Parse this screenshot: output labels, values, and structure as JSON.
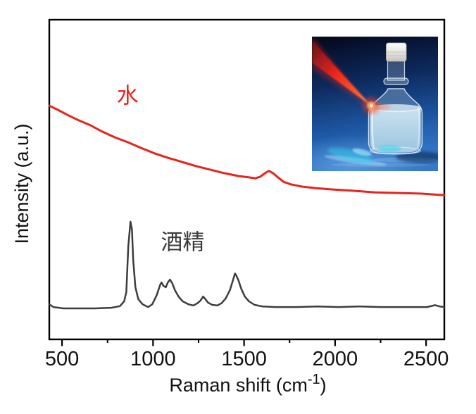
{
  "figure": {
    "frame_color": "#000000",
    "x_axis": {
      "label_pre": "Raman shift (cm",
      "label_sup": "-1",
      "label_post": ")"
    }
  },
  "chart_data": {
    "type": "line",
    "title": "",
    "xlabel": "Raman shift (cm⁻¹)",
    "ylabel": "Intensity (a.u.)",
    "xlim": [
      430,
      2600
    ],
    "ylim": [
      0,
      1
    ],
    "x_major_ticks": [
      500,
      1000,
      1500,
      2000,
      2500
    ],
    "x_minor_ticks": [
      750,
      1250,
      1750,
      2250
    ],
    "y_ticks": [],
    "grid": false,
    "legend_position": "none",
    "annotations": [
      {
        "text": "水",
        "x": 860,
        "y": 0.762,
        "color": "#e8231d"
      },
      {
        "text": "酒精",
        "x": 1163,
        "y": 0.304,
        "color": "#3a3a3a"
      }
    ],
    "series": [
      {
        "name": "水",
        "color": "#e8231d",
        "line_width": 3,
        "points": [
          [
            430,
            0.731
          ],
          [
            477,
            0.718
          ],
          [
            527,
            0.703
          ],
          [
            585,
            0.687
          ],
          [
            655,
            0.67
          ],
          [
            721,
            0.65
          ],
          [
            791,
            0.632
          ],
          [
            860,
            0.617
          ],
          [
            934,
            0.599
          ],
          [
            1012,
            0.581
          ],
          [
            1081,
            0.568
          ],
          [
            1159,
            0.555
          ],
          [
            1236,
            0.542
          ],
          [
            1314,
            0.531
          ],
          [
            1391,
            0.52
          ],
          [
            1469,
            0.511
          ],
          [
            1523,
            0.507
          ],
          [
            1562,
            0.504
          ],
          [
            1589,
            0.509
          ],
          [
            1616,
            0.52
          ],
          [
            1636,
            0.527
          ],
          [
            1659,
            0.52
          ],
          [
            1686,
            0.507
          ],
          [
            1717,
            0.493
          ],
          [
            1756,
            0.485
          ],
          [
            1818,
            0.478
          ],
          [
            1895,
            0.473
          ],
          [
            1988,
            0.469
          ],
          [
            2097,
            0.465
          ],
          [
            2221,
            0.46
          ],
          [
            2349,
            0.458
          ],
          [
            2477,
            0.456
          ],
          [
            2600,
            0.451
          ]
        ]
      },
      {
        "name": "酒精",
        "color": "#3d3d3d",
        "line_width": 2.5,
        "points": [
          [
            430,
            0.11
          ],
          [
            453,
            0.101
          ],
          [
            508,
            0.097
          ],
          [
            585,
            0.097
          ],
          [
            682,
            0.097
          ],
          [
            771,
            0.099
          ],
          [
            818,
            0.104
          ],
          [
            841,
            0.119
          ],
          [
            853,
            0.148
          ],
          [
            864,
            0.291
          ],
          [
            876,
            0.368
          ],
          [
            884,
            0.344
          ],
          [
            891,
            0.247
          ],
          [
            903,
            0.163
          ],
          [
            919,
            0.126
          ],
          [
            942,
            0.11
          ],
          [
            973,
            0.101
          ],
          [
            996,
            0.11
          ],
          [
            1019,
            0.137
          ],
          [
            1039,
            0.17
          ],
          [
            1046,
            0.178
          ],
          [
            1058,
            0.167
          ],
          [
            1070,
            0.163
          ],
          [
            1081,
            0.178
          ],
          [
            1093,
            0.187
          ],
          [
            1105,
            0.176
          ],
          [
            1120,
            0.154
          ],
          [
            1140,
            0.134
          ],
          [
            1163,
            0.119
          ],
          [
            1194,
            0.11
          ],
          [
            1221,
            0.106
          ],
          [
            1244,
            0.113
          ],
          [
            1260,
            0.121
          ],
          [
            1275,
            0.134
          ],
          [
            1287,
            0.126
          ],
          [
            1302,
            0.115
          ],
          [
            1326,
            0.108
          ],
          [
            1353,
            0.106
          ],
          [
            1376,
            0.113
          ],
          [
            1399,
            0.128
          ],
          [
            1422,
            0.154
          ],
          [
            1438,
            0.183
          ],
          [
            1450,
            0.206
          ],
          [
            1457,
            0.2
          ],
          [
            1469,
            0.185
          ],
          [
            1484,
            0.159
          ],
          [
            1504,
            0.134
          ],
          [
            1527,
            0.119
          ],
          [
            1558,
            0.108
          ],
          [
            1601,
            0.103
          ],
          [
            1670,
            0.101
          ],
          [
            1787,
            0.101
          ],
          [
            1903,
            0.103
          ],
          [
            2019,
            0.101
          ],
          [
            2136,
            0.103
          ],
          [
            2252,
            0.101
          ],
          [
            2387,
            0.101
          ],
          [
            2504,
            0.101
          ],
          [
            2550,
            0.107
          ],
          [
            2574,
            0.103
          ],
          [
            2600,
            0.101
          ]
        ]
      }
    ]
  },
  "inset": {
    "colors": {
      "bg_top": "#04071a",
      "bg_mid": "#0d2a5e",
      "bg_low": "#1d57a4",
      "bg_bottom": "#3579c8",
      "floor_glow": "#5e9fe2",
      "beam_dim": "#c61408",
      "beam": "#ff2715",
      "beam_hot": "#ff6a35",
      "beam_tip": "#ffc07a",
      "impact_core": "#fff3dd",
      "impact_mid": "#ff9b4d",
      "impact_halo": "#ff3a1d",
      "cyan_glow": "#2fd5ea",
      "cyan_bright": "#aef2ff",
      "liquid_top": "#d6ebf5",
      "liquid_bottom": "#9fc8e0",
      "cap_top": "#ffffff",
      "cap_bottom": "#c9c9c1",
      "shadow": "#051c3c"
    }
  }
}
